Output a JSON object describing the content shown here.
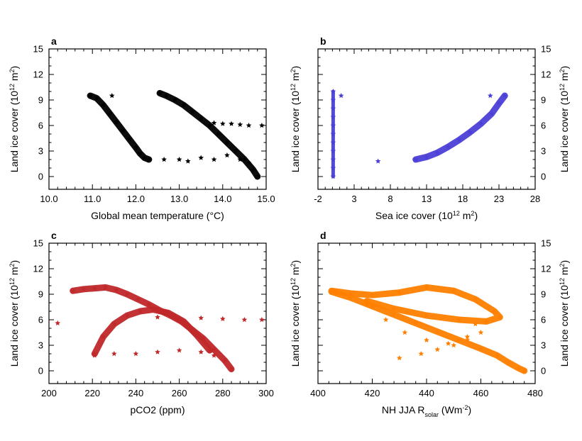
{
  "chart_data": [
    {
      "panel": "a",
      "type": "scatter",
      "xlabel": "Global mean temperature (°C)",
      "ylabel": "Land ice cover (10^12 m^2)",
      "ylabel_right": "Land ice cover (10^12 m^2)",
      "xlim": [
        10.0,
        15.0
      ],
      "ylim": [
        -1.5,
        15
      ],
      "xticks": [
        10.0,
        11.0,
        12.0,
        13.0,
        14.0,
        15.0
      ],
      "xtick_labels": [
        "10.0",
        "11.0",
        "12.0",
        "13.0",
        "14.0",
        "15.0"
      ],
      "yticks": [
        0,
        3,
        6,
        9,
        12,
        15
      ],
      "ytick_labels": [
        "0",
        "3",
        "6",
        "9",
        "12",
        "15"
      ],
      "color": "#000000",
      "series": [
        {
          "x": [
            10.95,
            11.1,
            11.25,
            11.4,
            11.55,
            11.7,
            11.85,
            12.0,
            12.1,
            12.2,
            12.3
          ],
          "y": [
            9.5,
            9.2,
            8.4,
            7.4,
            6.4,
            5.4,
            4.4,
            3.4,
            2.7,
            2.2,
            2.0
          ]
        },
        {
          "x": [
            12.55,
            12.7,
            12.9,
            13.1,
            13.3,
            13.5,
            13.7,
            13.9,
            14.1,
            14.3,
            14.5,
            14.7,
            14.8
          ],
          "y": [
            9.8,
            9.5,
            9.0,
            8.4,
            7.6,
            6.8,
            6.0,
            5.0,
            4.0,
            3.0,
            2.0,
            0.8,
            0.0
          ]
        },
        {
          "x": [
            13.0,
            13.2,
            13.5,
            13.8,
            14.1,
            14.4,
            14.6
          ],
          "y": [
            2.0,
            1.8,
            2.2,
            2.0,
            2.5,
            2.0,
            1.6
          ]
        },
        {
          "x": [
            13.8,
            14.0,
            14.2,
            14.4,
            14.6,
            14.9
          ],
          "y": [
            6.3,
            6.2,
            6.2,
            6.1,
            6.0,
            6.0
          ]
        },
        {
          "x": [
            11.45,
            12.65
          ],
          "y": [
            9.5,
            2.0
          ]
        }
      ]
    },
    {
      "panel": "b",
      "type": "scatter",
      "xlabel": "Sea ice cover (10^12 m^2)",
      "ylabel_right": "Land ice cover (10^12 m^2)",
      "xlim": [
        -2,
        28
      ],
      "ylim": [
        -1.5,
        15
      ],
      "xticks": [
        -2,
        3,
        8,
        13,
        18,
        23,
        28
      ],
      "xtick_labels": [
        "-2",
        "3",
        "8",
        "13",
        "18",
        "23",
        "28"
      ],
      "yticks": [
        0,
        3,
        6,
        9,
        12,
        15
      ],
      "ytick_labels": [
        "0",
        "3",
        "6",
        "9",
        "12",
        "15"
      ],
      "color": "#4b3fd6",
      "series": [
        {
          "x": [
            0.1,
            0.1,
            0.1,
            0.1,
            0.1,
            0.1,
            0.1,
            0.1,
            0.1,
            0.1,
            0.1
          ],
          "y": [
            0,
            1,
            2,
            3,
            4,
            5,
            6,
            7,
            8,
            9,
            10
          ]
        },
        {
          "x": [
            11.5,
            13,
            14.5,
            16,
            17.5,
            19,
            20.5,
            22,
            23,
            23.8
          ],
          "y": [
            2.0,
            2.3,
            2.8,
            3.5,
            4.3,
            5.2,
            6.2,
            7.4,
            8.6,
            9.5
          ]
        },
        {
          "x": [
            1.2,
            6.3,
            21.8
          ],
          "y": [
            9.5,
            1.8,
            9.5
          ]
        }
      ]
    },
    {
      "panel": "c",
      "type": "scatter",
      "xlabel": "pCO2 (ppm)",
      "ylabel": "Land ice cover (10^12 m^2)",
      "ylabel_right": "Land ice cover (10^12 m^2)",
      "xlim": [
        200,
        300
      ],
      "ylim": [
        -1.5,
        15
      ],
      "xticks": [
        200,
        220,
        240,
        260,
        280,
        300
      ],
      "xtick_labels": [
        "200",
        "220",
        "240",
        "260",
        "280",
        "300"
      ],
      "yticks": [
        0,
        3,
        6,
        9,
        12,
        15
      ],
      "ytick_labels": [
        "0",
        "3",
        "6",
        "9",
        "12",
        "15"
      ],
      "color": "#c0282a",
      "series": [
        {
          "x": [
            211,
            216,
            221,
            226,
            231,
            236,
            241,
            246,
            251,
            256,
            261,
            266,
            271,
            276,
            281,
            284
          ],
          "y": [
            9.4,
            9.6,
            9.7,
            9.8,
            9.5,
            9.0,
            8.4,
            7.8,
            7.1,
            6.5,
            5.8,
            4.8,
            3.8,
            2.5,
            1.2,
            0.2
          ]
        },
        {
          "x": [
            221,
            225,
            230,
            236,
            242,
            248,
            255,
            262,
            268,
            274
          ],
          "y": [
            2.0,
            4.0,
            5.5,
            6.5,
            7.0,
            7.2,
            6.8,
            5.8,
            4.2,
            2.4
          ]
        },
        {
          "x": [
            221,
            230,
            240,
            250,
            260,
            270,
            276
          ],
          "y": [
            1.8,
            2.0,
            2.0,
            2.2,
            2.4,
            2.2,
            1.8
          ]
        },
        {
          "x": [
            250,
            260,
            270,
            280,
            290,
            298
          ],
          "y": [
            6.3,
            6.2,
            6.2,
            6.1,
            6.0,
            6.0
          ]
        },
        {
          "x": [
            204
          ],
          "y": [
            5.6
          ]
        }
      ]
    },
    {
      "panel": "d",
      "type": "scatter",
      "xlabel": "NH JJA R_solar (Wm^-2)",
      "ylabel_right": "Land ice cover (10^12 m^2)",
      "xlim": [
        400,
        480
      ],
      "ylim": [
        -1.5,
        15
      ],
      "xticks": [
        400,
        420,
        440,
        460,
        480
      ],
      "xtick_labels": [
        "400",
        "420",
        "440",
        "460",
        "480"
      ],
      "yticks": [
        0,
        3,
        6,
        9,
        12,
        15
      ],
      "ytick_labels": [
        "0",
        "3",
        "6",
        "9",
        "12",
        "15"
      ],
      "color": "#ff7f00",
      "series": [
        {
          "x": [
            405,
            412,
            420,
            428,
            436,
            444,
            452,
            460,
            466,
            470,
            474,
            476
          ],
          "y": [
            9.3,
            8.6,
            7.6,
            6.6,
            5.6,
            4.6,
            3.6,
            2.6,
            1.8,
            1.0,
            0.3,
            0.0
          ]
        },
        {
          "x": [
            405,
            412,
            420,
            430,
            440,
            450,
            458,
            465,
            467,
            462,
            452,
            440,
            428,
            418
          ],
          "y": [
            9.4,
            9.1,
            8.9,
            9.2,
            9.8,
            9.4,
            8.4,
            7.0,
            6.3,
            5.8,
            6.0,
            6.5,
            7.3,
            8.2
          ]
        },
        {
          "x": [
            418,
            425,
            432,
            440,
            448,
            455,
            460,
            458
          ],
          "y": [
            7.8,
            6.0,
            4.5,
            3.6,
            3.2,
            3.6,
            4.5,
            5.5
          ]
        },
        {
          "x": [
            430,
            438,
            444,
            450,
            455
          ],
          "y": [
            1.5,
            2.0,
            2.5,
            3.0,
            4.0
          ]
        }
      ]
    }
  ]
}
